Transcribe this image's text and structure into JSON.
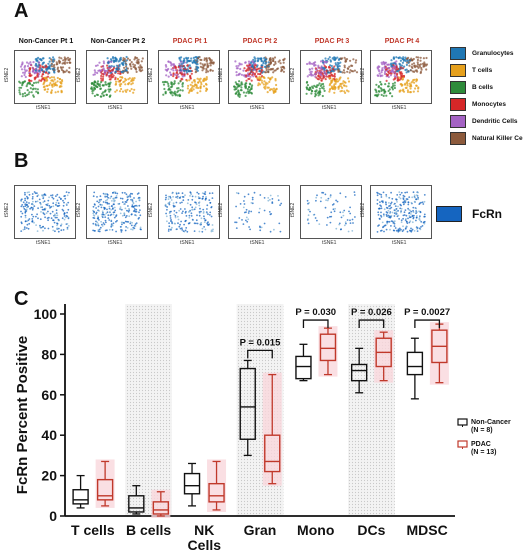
{
  "panels": {
    "a_letter": "A",
    "b_letter": "B",
    "c_letter": "C"
  },
  "columns": [
    {
      "title": "Non-Cancer Pt 1",
      "color": "black"
    },
    {
      "title": "Non-Cancer Pt 2",
      "color": "black"
    },
    {
      "title": "PDAC Pt 1",
      "color": "red"
    },
    {
      "title": "PDAC Pt 2",
      "color": "red"
    },
    {
      "title": "PDAC Pt 3",
      "color": "red"
    },
    {
      "title": "PDAC Pt 4",
      "color": "red"
    }
  ],
  "tsne_axes": {
    "x": "tSNE1",
    "y": "tSNE2"
  },
  "legend_a": [
    {
      "label": "Granulocytes",
      "color": "#1f77b4"
    },
    {
      "label": "T cells",
      "color": "#e6a01c"
    },
    {
      "label": "B cells",
      "color": "#2e8b3a"
    },
    {
      "label": "Monocytes",
      "color": "#d62728"
    },
    {
      "label": "Dendritic Cells",
      "color": "#a463c4"
    },
    {
      "label": "Natural Killer Cells",
      "color": "#8c5a3c"
    }
  ],
  "legend_b": {
    "label": "FcRn",
    "color": "#1565c0"
  },
  "chart_data": {
    "type": "box",
    "ylabel": "FcRn Percent Positive",
    "ylim": [
      0,
      100
    ],
    "yticks": [
      0,
      20,
      40,
      60,
      80,
      100
    ],
    "categories": [
      "T cells",
      "B cells",
      "NK Cells",
      "Gran",
      "Mono",
      "DCs",
      "MDSC"
    ],
    "shaded_categories": [
      "B cells",
      "Gran",
      "DCs"
    ],
    "series": [
      {
        "name": "Non-Cancer (N = 8)",
        "color": "#111111",
        "boxes": [
          {
            "min": 4,
            "q1": 6,
            "median": 8,
            "q3": 13,
            "max": 20
          },
          {
            "min": 1,
            "q1": 2,
            "median": 4,
            "q3": 10,
            "max": 15
          },
          {
            "min": 5,
            "q1": 11,
            "median": 15,
            "q3": 21,
            "max": 26
          },
          {
            "min": 30,
            "q1": 38,
            "median": 54,
            "q3": 73,
            "max": 77
          },
          {
            "min": 67,
            "q1": 68,
            "median": 74,
            "q3": 79,
            "max": 85
          },
          {
            "min": 61,
            "q1": 67,
            "median": 72,
            "q3": 75,
            "max": 83
          },
          {
            "min": 58,
            "q1": 70,
            "median": 74,
            "q3": 81,
            "max": 88
          }
        ]
      },
      {
        "name": "PDAC (N = 13)",
        "color": "#c0392b",
        "boxes": [
          {
            "min": 5,
            "q1": 8,
            "median": 10,
            "q3": 18,
            "max": 27
          },
          {
            "min": 0,
            "q1": 1,
            "median": 3,
            "q3": 7,
            "max": 12
          },
          {
            "min": 3,
            "q1": 7,
            "median": 10,
            "q3": 16,
            "max": 27
          },
          {
            "min": 16,
            "q1": 22,
            "median": 27,
            "q3": 40,
            "max": 70
          },
          {
            "min": 70,
            "q1": 77,
            "median": 83,
            "q3": 90,
            "max": 93
          },
          {
            "min": 67,
            "q1": 74,
            "median": 81,
            "q3": 88,
            "max": 91
          },
          {
            "min": 66,
            "q1": 76,
            "median": 84,
            "q3": 92,
            "max": 95
          }
        ]
      }
    ],
    "annotations": [
      {
        "category": "Gran",
        "text": "P = 0.015",
        "y": 82
      },
      {
        "category": "Mono",
        "text": "P = 0.030",
        "y": 97
      },
      {
        "category": "DCs",
        "text": "P = 0.026",
        "y": 97
      },
      {
        "category": "MDSC",
        "text": "P = 0.0027",
        "y": 97
      }
    ],
    "legend": [
      {
        "label": "Non-Cancer",
        "sub": "(N = 8)",
        "color": "#111111"
      },
      {
        "label": "PDAC",
        "sub": "(N = 13)",
        "color": "#c0392b"
      }
    ]
  }
}
